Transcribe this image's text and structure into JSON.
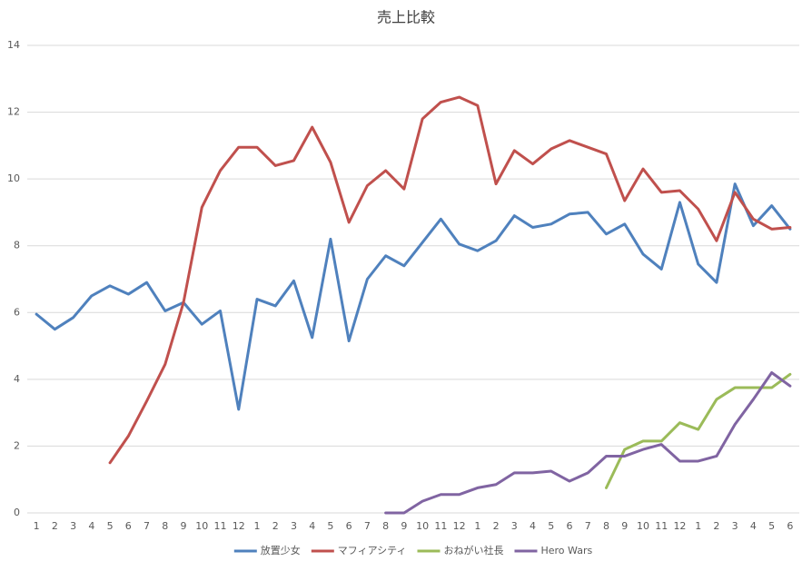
{
  "chart_data": {
    "type": "line",
    "title": "売上比較",
    "categories": [
      "1",
      "2",
      "3",
      "4",
      "5",
      "6",
      "7",
      "8",
      "9",
      "10",
      "11",
      "12",
      "1",
      "2",
      "3",
      "4",
      "5",
      "6",
      "7",
      "8",
      "9",
      "10",
      "11",
      "12",
      "1",
      "2",
      "3",
      "4",
      "5",
      "6",
      "7",
      "8",
      "9",
      "10",
      "11",
      "12",
      "1",
      "2",
      "3",
      "4",
      "5",
      "6"
    ],
    "series": [
      {
        "name": "放置少女",
        "color": "#4f81bd",
        "values": [
          5.95,
          5.5,
          5.85,
          6.5,
          6.8,
          6.55,
          6.9,
          6.05,
          6.3,
          5.65,
          6.05,
          3.1,
          6.4,
          6.2,
          6.95,
          5.25,
          8.2,
          5.15,
          7.0,
          7.7,
          7.4,
          8.1,
          8.8,
          8.05,
          7.85,
          8.15,
          8.9,
          8.55,
          8.65,
          8.95,
          9.0,
          8.35,
          8.65,
          7.75,
          7.3,
          9.3,
          7.45,
          6.9,
          9.85,
          8.6,
          9.2,
          8.5
        ]
      },
      {
        "name": "マフィアシティ",
        "color": "#c0504d",
        "values": [
          null,
          null,
          null,
          null,
          1.5,
          2.3,
          3.35,
          4.45,
          6.3,
          9.15,
          10.25,
          10.95,
          10.95,
          10.4,
          10.55,
          11.55,
          10.5,
          8.7,
          9.8,
          10.25,
          9.7,
          11.8,
          12.3,
          12.45,
          12.2,
          9.85,
          10.85,
          10.45,
          10.9,
          11.15,
          10.95,
          10.75,
          9.35,
          10.3,
          9.6,
          9.65,
          9.1,
          8.15,
          9.6,
          8.8,
          8.5,
          8.55
        ]
      },
      {
        "name": "おねがい社長",
        "color": "#9bbb59",
        "values": [
          null,
          null,
          null,
          null,
          null,
          null,
          null,
          null,
          null,
          null,
          null,
          null,
          null,
          null,
          null,
          null,
          null,
          null,
          null,
          null,
          null,
          null,
          null,
          null,
          null,
          null,
          null,
          null,
          null,
          null,
          null,
          0.75,
          1.9,
          2.15,
          2.15,
          2.7,
          2.5,
          3.4,
          3.75,
          3.75,
          3.75,
          4.15
        ]
      },
      {
        "name": "Hero Wars",
        "color": "#8064a2",
        "values": [
          null,
          null,
          null,
          null,
          null,
          null,
          null,
          null,
          null,
          null,
          null,
          null,
          null,
          null,
          null,
          null,
          null,
          null,
          null,
          0.0,
          0.0,
          0.35,
          0.55,
          0.55,
          0.75,
          0.85,
          1.2,
          1.2,
          1.25,
          0.95,
          1.2,
          1.7,
          1.7,
          1.9,
          2.05,
          1.55,
          1.55,
          1.7,
          2.65,
          3.4,
          4.2,
          3.8
        ]
      }
    ],
    "ylim": [
      0,
      14
    ],
    "yticks": [
      0,
      2,
      4,
      6,
      8,
      10,
      12,
      14
    ],
    "grid": true,
    "legend": "bottom"
  }
}
